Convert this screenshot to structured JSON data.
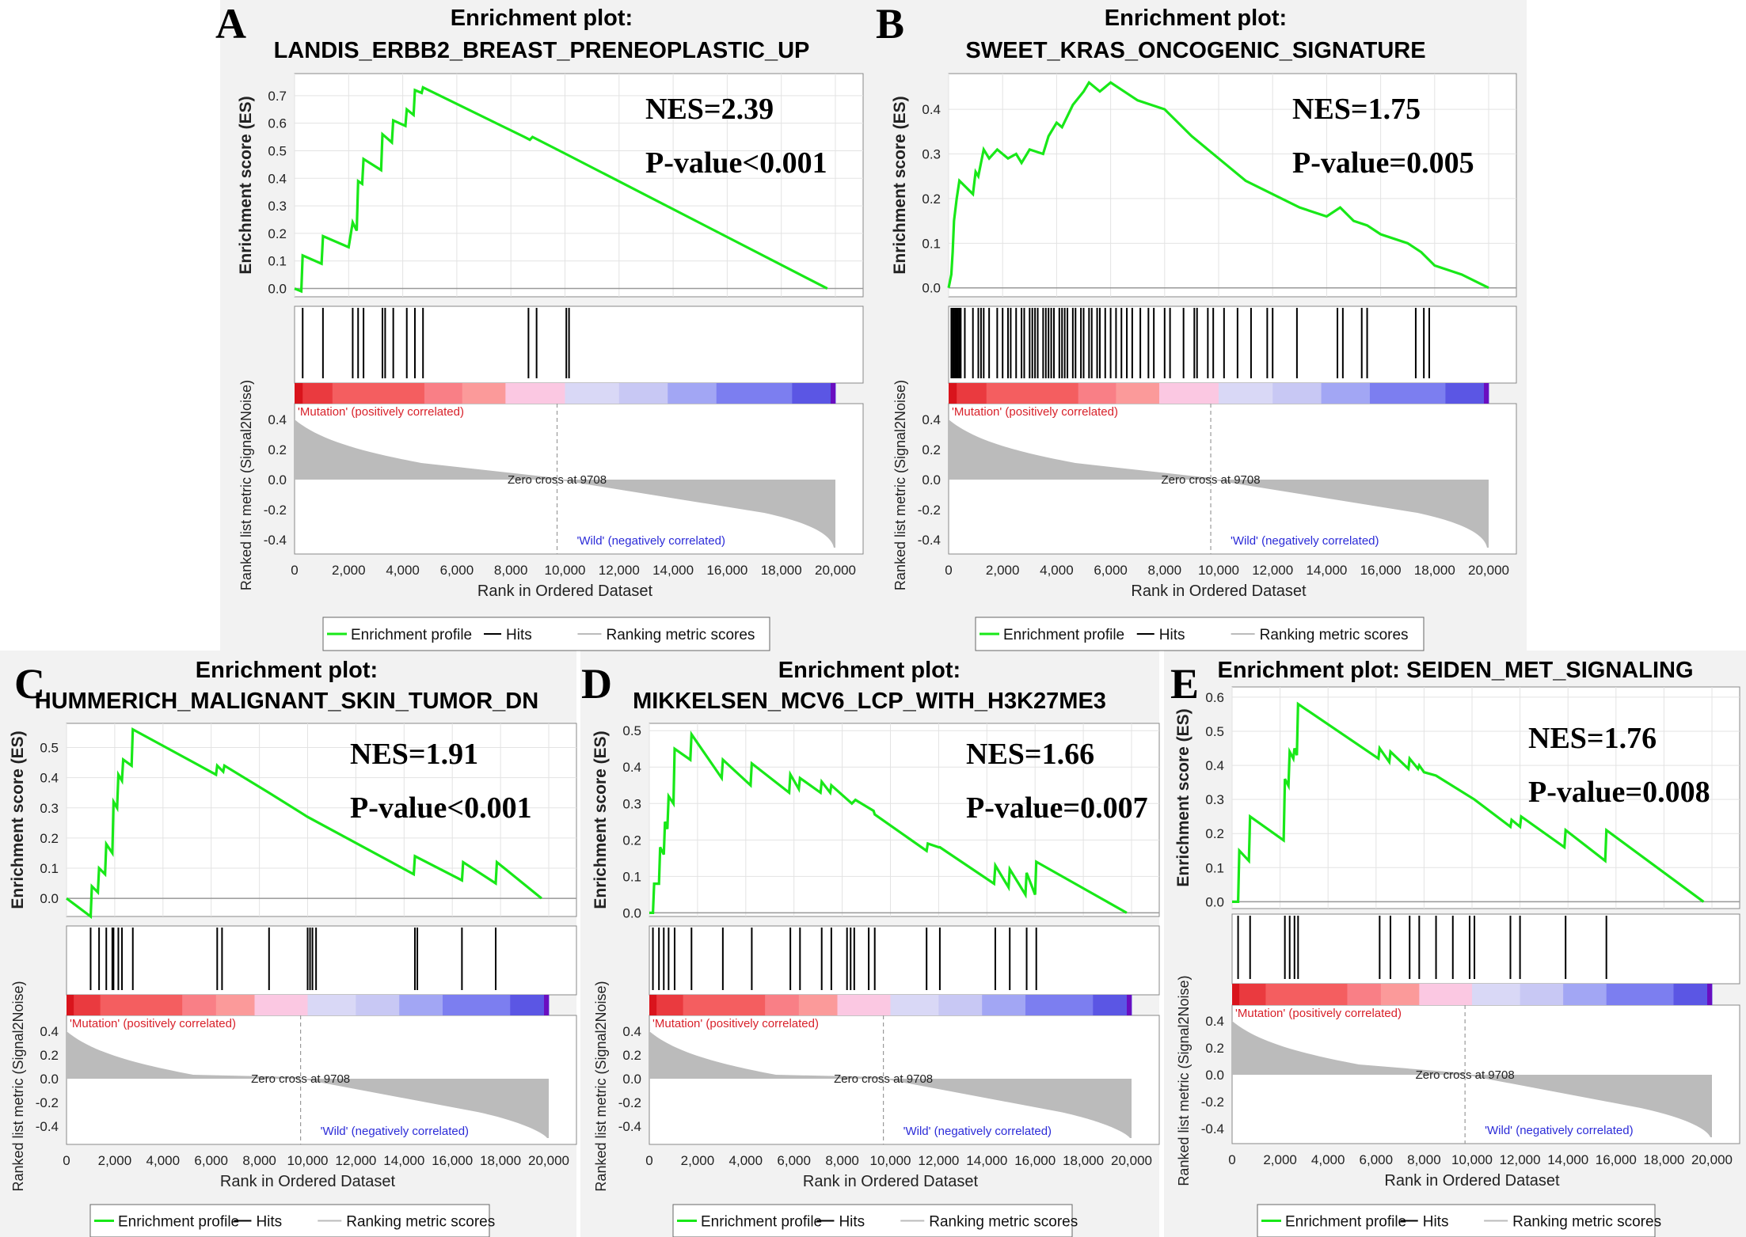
{
  "colors": {
    "es_line": "#18e818",
    "hits": "#000000",
    "metric": "#bbbbbb",
    "pos_label": "#d8212a",
    "neg_label": "#2b2bd8",
    "background": "#f2f2f2"
  },
  "legend": {
    "profile": "Enrichment profile",
    "hits": "Hits",
    "metric": "Ranking metric scores"
  },
  "common": {
    "title_prefix": "Enrichment plot:",
    "es_ylabel": "Enrichment score (ES)",
    "metric_ylabel": "Ranked list metric (Signal2Noise)",
    "xlabel": "Rank in Ordered Dataset",
    "pos_label": "'Mutation' (positively correlated)",
    "neg_label": "'Wild' (negatively correlated)",
    "zero_cross": "Zero cross at 9708",
    "x_ticks": [
      "0",
      "2,000",
      "4,000",
      "6,000",
      "8,000",
      "10,000",
      "12,000",
      "14,000",
      "16,000",
      "18,000",
      "20,000"
    ],
    "metric_ticks": [
      "0.4",
      "0.2",
      "0.0",
      "-0.2",
      "-0.4"
    ]
  },
  "chart_data": [
    {
      "type": "line",
      "panel": "A",
      "title": "Enrichment plot:",
      "subtitle": "LANDIS_ERBB2_BREAST_PRENEOPLASTIC_UP",
      "nes": "NES=2.39",
      "pvalue": "P-value<0.001",
      "xlabel": "Rank in Ordered Dataset",
      "ylabel": "Enrichment score (ES)",
      "xlim": [
        0,
        20000
      ],
      "ylim": [
        -0.03,
        0.78
      ],
      "y_ticks": [
        "0.7",
        "0.6",
        "0.5",
        "0.4",
        "0.3",
        "0.2",
        "0.1",
        "0.0"
      ],
      "x": [
        0,
        250,
        300,
        1000,
        1050,
        2000,
        2150,
        2300,
        2350,
        2500,
        2550,
        3200,
        3250,
        3600,
        3650,
        4100,
        4150,
        4400,
        4450,
        4700,
        4750,
        8500,
        8700,
        8800,
        10000,
        19700
      ],
      "y": [
        0,
        -0.01,
        0.12,
        0.09,
        0.19,
        0.15,
        0.24,
        0.21,
        0.39,
        0.38,
        0.47,
        0.43,
        0.56,
        0.53,
        0.61,
        0.59,
        0.65,
        0.63,
        0.72,
        0.71,
        0.73,
        0.55,
        0.54,
        0.55,
        0.49,
        0
      ],
      "hits": [
        300,
        1050,
        2150,
        2350,
        2550,
        3250,
        3350,
        3650,
        4150,
        4450,
        4750,
        8650,
        8950,
        10050,
        10150
      ]
    },
    {
      "type": "line",
      "panel": "B",
      "title": "Enrichment plot:",
      "subtitle": "SWEET_KRAS_ONCOGENIC_SIGNATURE",
      "nes": "NES=1.75",
      "pvalue": "P-value=0.005",
      "xlabel": "Rank in Ordered Dataset",
      "ylabel": "Enrichment score (ES)",
      "xlim": [
        0,
        20000
      ],
      "ylim": [
        -0.02,
        0.48
      ],
      "y_ticks": [
        "0.4",
        "0.3",
        "0.2",
        "0.1",
        "0.0"
      ],
      "x": [
        0,
        100,
        150,
        200,
        300,
        400,
        900,
        1000,
        1100,
        1300,
        1500,
        1800,
        2200,
        2500,
        2700,
        3000,
        3500,
        3700,
        4000,
        4200,
        4600,
        5000,
        5200,
        5600,
        6000,
        6500,
        7000,
        8000,
        9000,
        10000,
        11000,
        12000,
        13000,
        14000,
        14500,
        15000,
        15500,
        16000,
        17000,
        17500,
        18000,
        19000,
        20000
      ],
      "y": [
        0,
        0.03,
        0.08,
        0.15,
        0.2,
        0.24,
        0.21,
        0.26,
        0.25,
        0.31,
        0.29,
        0.31,
        0.29,
        0.3,
        0.28,
        0.31,
        0.3,
        0.34,
        0.37,
        0.36,
        0.41,
        0.44,
        0.46,
        0.44,
        0.46,
        0.44,
        0.42,
        0.4,
        0.34,
        0.29,
        0.24,
        0.21,
        0.18,
        0.16,
        0.18,
        0.15,
        0.14,
        0.12,
        0.1,
        0.08,
        0.05,
        0.03,
        0
      ],
      "hits": [
        100,
        150,
        200,
        250,
        300,
        350,
        400,
        450,
        600,
        900,
        1100,
        1200,
        1300,
        1500,
        1800,
        2000,
        2200,
        2300,
        2500,
        2700,
        2800,
        3000,
        3100,
        3200,
        3300,
        3500,
        3600,
        3700,
        3800,
        3900,
        4100,
        4200,
        4300,
        4400,
        4600,
        4700,
        4900,
        5000,
        5200,
        5300,
        5500,
        5600,
        5800,
        6000,
        6200,
        6400,
        6600,
        6800,
        7100,
        7400,
        7600,
        8000,
        8200,
        8700,
        9100,
        9200,
        9600,
        9800,
        10200,
        10700,
        11200,
        11800,
        12000,
        12900,
        14400,
        14600,
        15300,
        15500,
        17300,
        17600,
        17800
      ]
    },
    {
      "type": "line",
      "panel": "C",
      "title": "Enrichment plot:",
      "subtitle": "HUMMERICH_MALIGNANT_SKIN_TUMOR_DN",
      "nes": "NES=1.91",
      "pvalue": "P-value<0.001",
      "xlabel": "Rank in Ordered Dataset",
      "ylabel": "Enrichment score (ES)",
      "xlim": [
        0,
        20000
      ],
      "ylim": [
        -0.06,
        0.58
      ],
      "y_ticks": [
        "0.5",
        "0.4",
        "0.3",
        "0.2",
        "0.1",
        "0.0"
      ],
      "x": [
        0,
        1000,
        1050,
        1300,
        1350,
        1600,
        1650,
        1900,
        1950,
        2100,
        2150,
        2300,
        2350,
        2700,
        2750,
        6200,
        6250,
        6500,
        6550,
        8400,
        10000,
        14400,
        14450,
        16400,
        16450,
        17800,
        17850,
        19700
      ],
      "y": [
        0,
        -0.06,
        0.04,
        0.02,
        0.1,
        0.08,
        0.18,
        0.15,
        0.32,
        0.3,
        0.41,
        0.39,
        0.46,
        0.44,
        0.56,
        0.41,
        0.44,
        0.42,
        0.44,
        0.35,
        0.27,
        0.08,
        0.14,
        0.06,
        0.12,
        0.05,
        0.12,
        0
      ],
      "hits": [
        1000,
        1350,
        1650,
        1900,
        1950,
        2150,
        2300,
        2750,
        6250,
        6450,
        8400,
        10000,
        10100,
        10200,
        10350,
        14450,
        14550,
        16400,
        17800
      ]
    },
    {
      "type": "line",
      "panel": "D",
      "title": "Enrichment plot:",
      "subtitle": "MIKKELSEN_MCV6_LCP_WITH_H3K27ME3",
      "nes": "NES=1.66",
      "pvalue": "P-value=0.007",
      "xlabel": "Rank in Ordered Dataset",
      "ylabel": "Enrichment score (ES)",
      "xlim": [
        0,
        20000
      ],
      "ylim": [
        -0.01,
        0.52
      ],
      "y_ticks": [
        "0.5",
        "0.4",
        "0.3",
        "0.2",
        "0.1",
        "0.0"
      ],
      "x": [
        0,
        150,
        200,
        400,
        450,
        600,
        650,
        750,
        800,
        1000,
        1050,
        1700,
        1750,
        3000,
        3050,
        4200,
        4250,
        5800,
        5850,
        6200,
        6250,
        7100,
        7150,
        7500,
        7550,
        8400,
        8550,
        9300,
        9350,
        11500,
        11550,
        12000,
        12050,
        14300,
        14350,
        14900,
        14950,
        15600,
        15650,
        16000,
        16050,
        19800
      ],
      "y": [
        0,
        0,
        0.08,
        0.08,
        0.18,
        0.16,
        0.25,
        0.23,
        0.32,
        0.3,
        0.45,
        0.42,
        0.49,
        0.37,
        0.42,
        0.35,
        0.41,
        0.33,
        0.38,
        0.34,
        0.37,
        0.33,
        0.36,
        0.33,
        0.35,
        0.3,
        0.31,
        0.28,
        0.27,
        0.17,
        0.19,
        0.18,
        0.18,
        0.08,
        0.13,
        0.07,
        0.12,
        0.05,
        0.11,
        0.05,
        0.14,
        0
      ],
      "hits": [
        150,
        400,
        600,
        800,
        1050,
        1750,
        3050,
        4250,
        5850,
        6250,
        7150,
        7550,
        8200,
        8350,
        8500,
        9100,
        9350,
        11500,
        12050,
        14350,
        14950,
        15650,
        16050
      ]
    },
    {
      "type": "line",
      "panel": "E",
      "title": "Enrichment plot: SEIDEN_MET_SIGNALING",
      "subtitle": "",
      "nes": "NES=1.76",
      "pvalue": "P-value=0.008",
      "xlabel": "Rank in Ordered Dataset",
      "ylabel": "Enrichment score (ES)",
      "xlim": [
        0,
        20000
      ],
      "ylim": [
        -0.02,
        0.63
      ],
      "y_ticks": [
        "0.6",
        "0.5",
        "0.4",
        "0.3",
        "0.2",
        "0.1",
        "0.0"
      ],
      "x": [
        0,
        250,
        300,
        700,
        750,
        2150,
        2200,
        2350,
        2400,
        2550,
        2600,
        2700,
        2750,
        6100,
        6150,
        6550,
        6600,
        7350,
        7400,
        7750,
        7800,
        8000,
        8500,
        10100,
        11600,
        11650,
        12000,
        12050,
        13850,
        13900,
        15550,
        15600,
        19650
      ],
      "y": [
        0,
        0,
        0.15,
        0.12,
        0.25,
        0.18,
        0.36,
        0.34,
        0.44,
        0.42,
        0.45,
        0.43,
        0.58,
        0.42,
        0.45,
        0.41,
        0.44,
        0.39,
        0.42,
        0.39,
        0.4,
        0.38,
        0.37,
        0.3,
        0.22,
        0.24,
        0.22,
        0.25,
        0.16,
        0.21,
        0.12,
        0.21,
        0
      ]
    },
    {
      "type": "placeholder",
      "panel": "_hits_E",
      "hits": [
        250,
        750,
        2200,
        2400,
        2600,
        2750,
        6150,
        6600,
        7400,
        7800,
        8500,
        9200,
        9900,
        10100,
        11600,
        12000,
        13900,
        15600
      ]
    }
  ]
}
